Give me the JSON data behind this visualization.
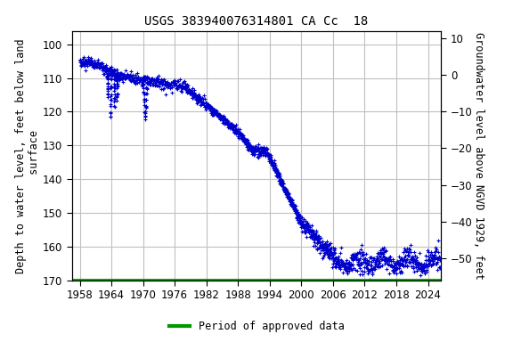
{
  "title": "USGS 383940076314801 CA Cc  18",
  "ylabel_left": "Depth to water level, feet below land\n surface",
  "ylabel_right": "Groundwater level above NGVD 1929, feet",
  "ylim_left": [
    170,
    96
  ],
  "ylim_right": [
    -56,
    12
  ],
  "yticks_left": [
    100,
    110,
    120,
    130,
    140,
    150,
    160,
    170
  ],
  "yticks_right": [
    10,
    0,
    -10,
    -20,
    -30,
    -40,
    -50
  ],
  "xticks": [
    1958,
    1964,
    1970,
    1976,
    1982,
    1988,
    1994,
    2000,
    2006,
    2012,
    2018,
    2024
  ],
  "xlim": [
    1956.5,
    2026.5
  ],
  "dot_color": "#0000cc",
  "green_line_color": "#009900",
  "background_color": "#ffffff",
  "grid_color": "#c0c0c0",
  "legend_label": "Period of approved data",
  "title_fontsize": 10,
  "axis_label_fontsize": 8.5,
  "tick_fontsize": 8.5,
  "dot_size": 3.5
}
